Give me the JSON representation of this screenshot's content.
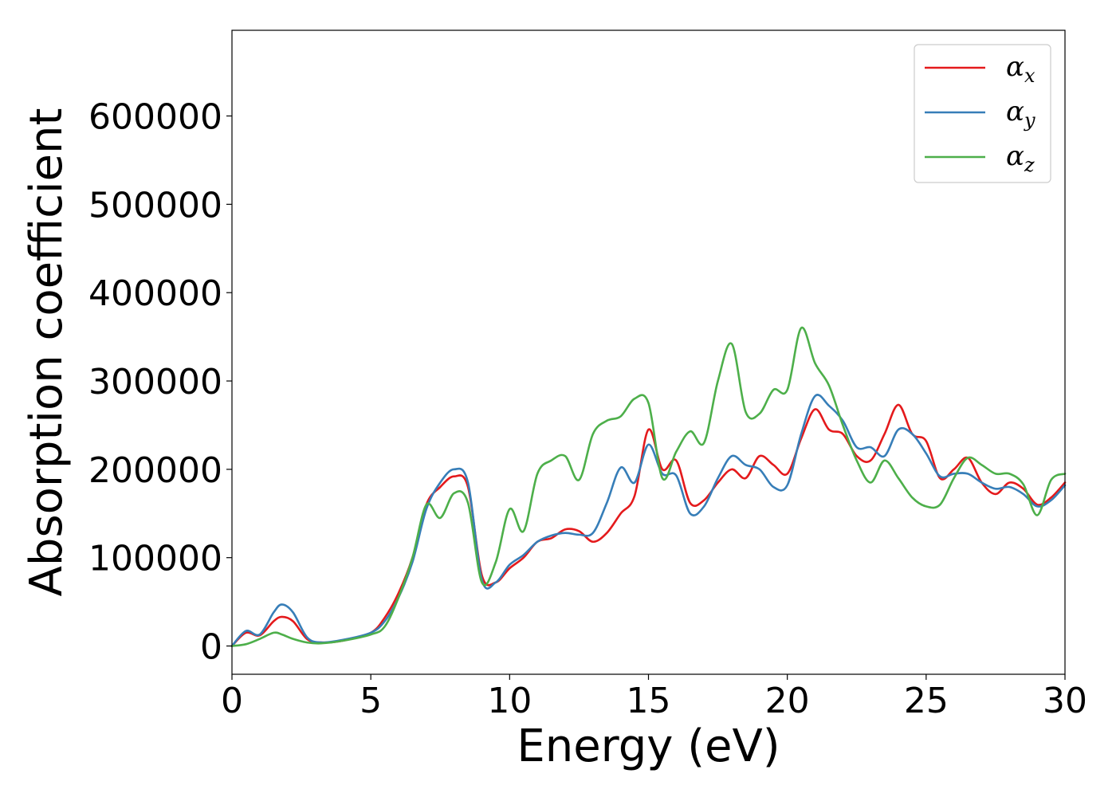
{
  "chart_data": {
    "type": "line",
    "xlabel": "Energy (eV)",
    "ylabel": "Absorption coefficient",
    "xlim": [
      0,
      30
    ],
    "ylim": [
      -32000,
      697000
    ],
    "xticks": [
      0,
      5,
      10,
      15,
      20,
      25,
      30
    ],
    "yticks": [
      0,
      100000,
      200000,
      300000,
      400000,
      500000,
      600000
    ],
    "xtick_labels": [
      "0",
      "5",
      "10",
      "15",
      "20",
      "25",
      "30"
    ],
    "ytick_labels": [
      "0",
      "100000",
      "200000",
      "300000",
      "400000",
      "500000",
      "600000"
    ],
    "grid": false,
    "legend_position": "top-right",
    "series": [
      {
        "name": "αx",
        "legend_base": "α",
        "legend_sub": "x",
        "color": "#e41a1c",
        "x": [
          0,
          0.5,
          1.0,
          1.5,
          1.8,
          2.2,
          2.7,
          3.2,
          4.0,
          5.0,
          5.5,
          6.0,
          6.5,
          7.0,
          7.5,
          8.0,
          8.5,
          9.0,
          9.5,
          10.0,
          10.5,
          11.0,
          11.5,
          12.0,
          12.5,
          13.0,
          13.5,
          14.0,
          14.5,
          15.0,
          15.5,
          16.0,
          16.5,
          17.0,
          17.5,
          18.0,
          18.5,
          19.0,
          19.5,
          20.0,
          20.5,
          21.0,
          21.5,
          22.0,
          22.5,
          23.0,
          23.5,
          24.0,
          24.5,
          25.0,
          25.5,
          26.0,
          26.5,
          27.0,
          27.5,
          28.0,
          28.5,
          29.0,
          29.5,
          30.0
        ],
        "y": [
          0,
          15000,
          12000,
          28000,
          33000,
          28000,
          8000,
          4000,
          6000,
          15000,
          32000,
          60000,
          100000,
          160000,
          180000,
          192000,
          180000,
          80000,
          72000,
          88000,
          100000,
          118000,
          122000,
          132000,
          130000,
          118000,
          128000,
          150000,
          170000,
          245000,
          200000,
          210000,
          162000,
          165000,
          185000,
          200000,
          190000,
          215000,
          205000,
          195000,
          235000,
          268000,
          245000,
          240000,
          215000,
          210000,
          240000,
          273000,
          240000,
          232000,
          190000,
          200000,
          213000,
          185000,
          172000,
          185000,
          178000,
          160000,
          168000,
          185000
        ]
      },
      {
        "name": "αy",
        "legend_base": "α",
        "legend_sub": "y",
        "color": "#377eb8",
        "x": [
          0,
          0.5,
          1.0,
          1.5,
          1.8,
          2.2,
          2.7,
          3.2,
          4.0,
          5.0,
          5.5,
          6.0,
          6.5,
          7.0,
          7.5,
          8.0,
          8.5,
          9.0,
          9.5,
          10.0,
          10.5,
          11.0,
          11.5,
          12.0,
          12.5,
          13.0,
          13.5,
          14.0,
          14.5,
          15.0,
          15.5,
          16.0,
          16.5,
          17.0,
          17.5,
          18.0,
          18.5,
          19.0,
          19.5,
          20.0,
          20.5,
          21.0,
          21.5,
          22.0,
          22.5,
          23.0,
          23.5,
          24.0,
          24.5,
          25.0,
          25.5,
          26.0,
          26.5,
          27.0,
          27.5,
          28.0,
          28.5,
          29.0,
          29.5,
          30.0
        ],
        "y": [
          0,
          17000,
          13000,
          38000,
          47000,
          38000,
          10000,
          4000,
          7000,
          15000,
          28000,
          55000,
          95000,
          155000,
          185000,
          200000,
          185000,
          75000,
          72000,
          92000,
          103000,
          118000,
          125000,
          128000,
          126000,
          128000,
          162000,
          202000,
          185000,
          228000,
          195000,
          193000,
          150000,
          158000,
          190000,
          215000,
          205000,
          200000,
          180000,
          182000,
          240000,
          283000,
          272000,
          255000,
          225000,
          225000,
          215000,
          245000,
          240000,
          218000,
          192000,
          195000,
          195000,
          185000,
          178000,
          180000,
          172000,
          158000,
          165000,
          182000
        ]
      },
      {
        "name": "αz",
        "legend_base": "α",
        "legend_sub": "z",
        "color": "#4daf4a",
        "x": [
          0,
          0.5,
          1.0,
          1.5,
          1.8,
          2.2,
          2.7,
          3.2,
          4.0,
          5.0,
          5.5,
          6.0,
          6.5,
          7.0,
          7.5,
          8.0,
          8.5,
          9.0,
          9.5,
          10.0,
          10.5,
          11.0,
          11.5,
          12.0,
          12.5,
          13.0,
          13.5,
          14.0,
          14.5,
          15.0,
          15.5,
          16.0,
          16.5,
          17.0,
          17.5,
          18.0,
          18.5,
          19.0,
          19.5,
          20.0,
          20.5,
          21.0,
          21.5,
          22.0,
          22.5,
          23.0,
          23.5,
          24.0,
          24.5,
          25.0,
          25.5,
          26.0,
          26.5,
          27.0,
          27.5,
          28.0,
          28.5,
          29.0,
          29.5,
          30.0
        ],
        "y": [
          0,
          2000,
          8000,
          15000,
          13000,
          8000,
          4000,
          3000,
          6000,
          13000,
          22000,
          55000,
          100000,
          160000,
          145000,
          173000,
          162000,
          72000,
          95000,
          155000,
          130000,
          195000,
          210000,
          215000,
          188000,
          240000,
          255000,
          260000,
          280000,
          275000,
          190000,
          220000,
          243000,
          230000,
          300000,
          342000,
          265000,
          263000,
          290000,
          290000,
          360000,
          320000,
          295000,
          250000,
          210000,
          185000,
          210000,
          190000,
          168000,
          158000,
          160000,
          190000,
          213000,
          205000,
          195000,
          195000,
          183000,
          148000,
          188000,
          195000
        ]
      }
    ]
  }
}
